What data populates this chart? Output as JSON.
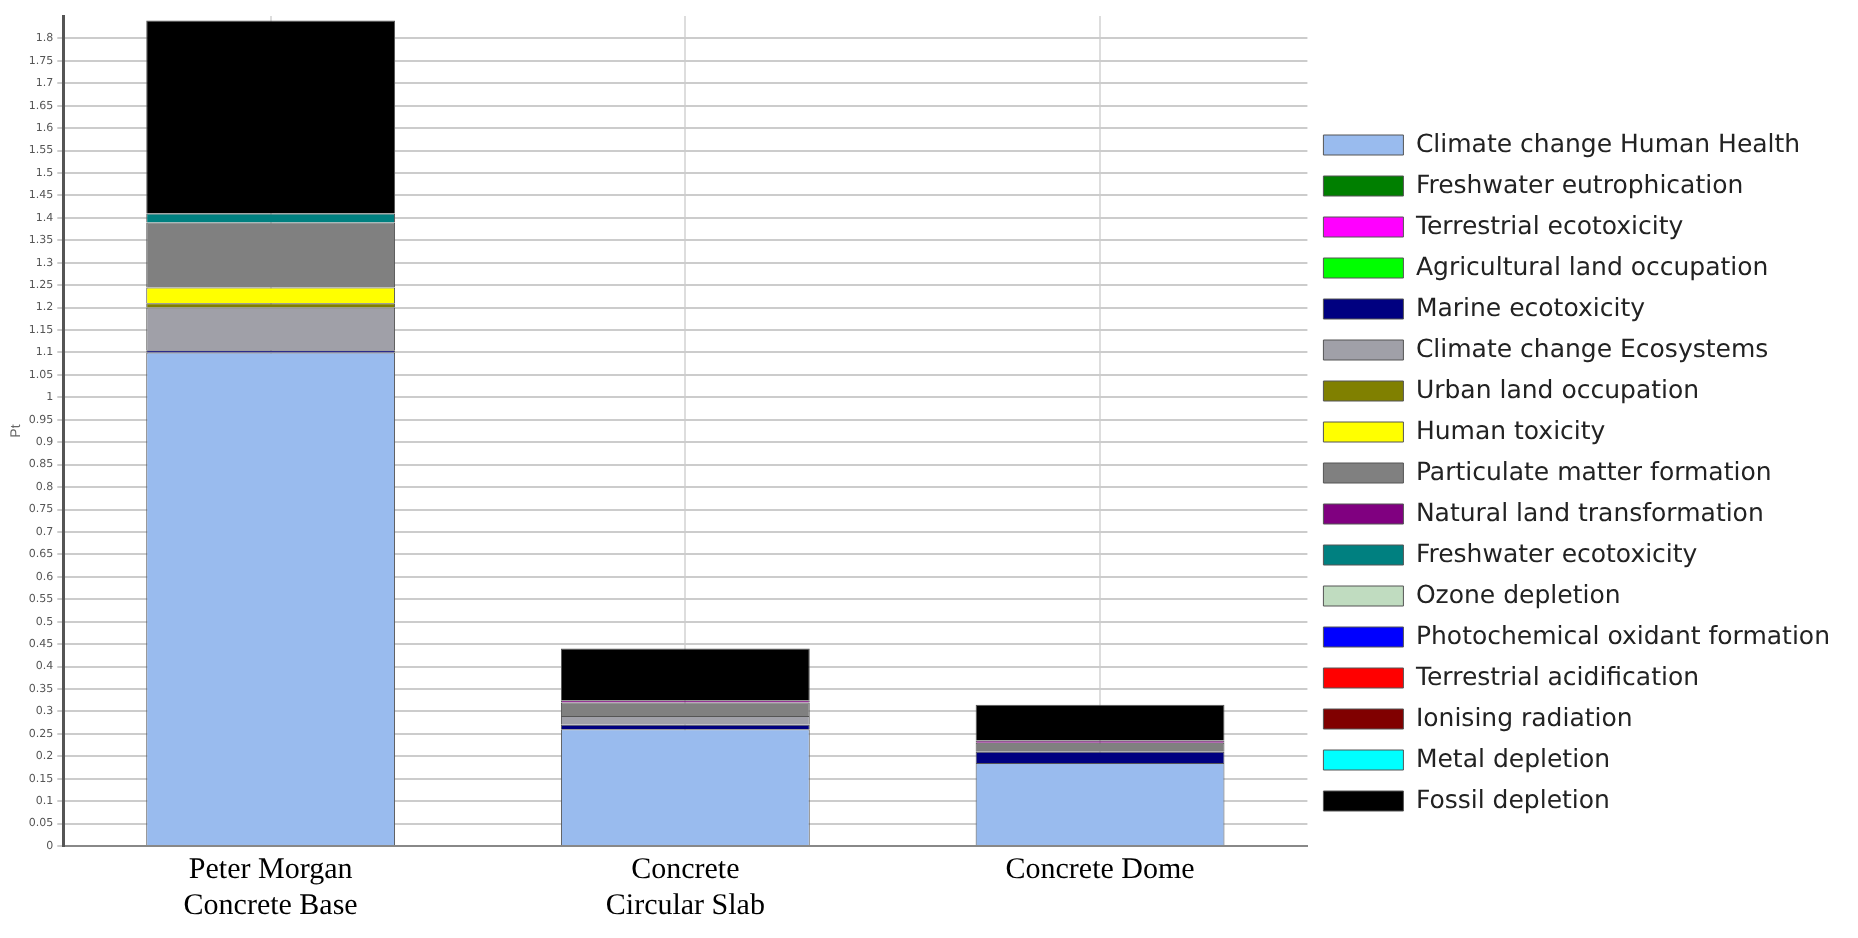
{
  "chart_data": {
    "type": "bar",
    "stacked": true,
    "ylabel": "Pt",
    "categories": [
      "Peter Morgan Concrete Base",
      "Concrete Circular Slab",
      "Concrete Dome"
    ],
    "ylim": [
      0,
      1.85
    ],
    "yticks": [
      0,
      0.05,
      0.1,
      0.15,
      0.2,
      0.25,
      0.3,
      0.35,
      0.4,
      0.45,
      0.5,
      0.55,
      0.6,
      0.65,
      0.7,
      0.75,
      0.8,
      0.85,
      0.9,
      0.95,
      1,
      1.05,
      1.1,
      1.15,
      1.2,
      1.25,
      1.3,
      1.35,
      1.4,
      1.45,
      1.5,
      1.55,
      1.6,
      1.65,
      1.7,
      1.75,
      1.8
    ],
    "grid": true,
    "legend": "right",
    "series": [
      {
        "name": "Climate change Human Health",
        "color": "#99bbee",
        "values": [
          1.1,
          0.26,
          0.185
        ]
      },
      {
        "name": "Freshwater eutrophication",
        "color": "#007f00",
        "values": [
          0,
          0,
          0
        ]
      },
      {
        "name": "Terrestrial ecotoxicity",
        "color": "#ff00ff",
        "values": [
          0,
          0,
          0
        ]
      },
      {
        "name": "Agricultural land occupation",
        "color": "#00ff00",
        "values": [
          0,
          0,
          0
        ]
      },
      {
        "name": "Marine ecotoxicity",
        "color": "#000080",
        "values": [
          0.005,
          0.01,
          0.025
        ]
      },
      {
        "name": "Climate change Ecosystems",
        "color": "#a0a0a8",
        "values": [
          0.095,
          0.02,
          0
        ]
      },
      {
        "name": "Urban land occupation",
        "color": "#808000",
        "values": [
          0.01,
          0,
          0
        ]
      },
      {
        "name": "Human toxicity",
        "color": "#ffff00",
        "values": [
          0.035,
          0,
          0
        ]
      },
      {
        "name": "Particulate matter formation",
        "color": "#808080",
        "values": [
          0.145,
          0.03,
          0.02
        ]
      },
      {
        "name": "Natural land transformation",
        "color": "#800080",
        "values": [
          0,
          0.005,
          0.005
        ]
      },
      {
        "name": "Freshwater ecotoxicity",
        "color": "#008080",
        "values": [
          0.02,
          0,
          0
        ]
      },
      {
        "name": "Ozone depletion",
        "color": "#c0dcc0",
        "values": [
          0,
          0,
          0
        ]
      },
      {
        "name": "Photochemical oxidant formation",
        "color": "#0000ff",
        "values": [
          0,
          0,
          0
        ]
      },
      {
        "name": "Terrestrial acidification",
        "color": "#ff0000",
        "values": [
          0,
          0,
          0
        ]
      },
      {
        "name": "Ionising radiation",
        "color": "#800000",
        "values": [
          0,
          0,
          0
        ]
      },
      {
        "name": "Metal depletion",
        "color": "#00ffff",
        "values": [
          0,
          0,
          0
        ]
      },
      {
        "name": "Fossil depletion",
        "color": "#000000",
        "values": [
          0.43,
          0.115,
          0.08
        ]
      }
    ]
  }
}
